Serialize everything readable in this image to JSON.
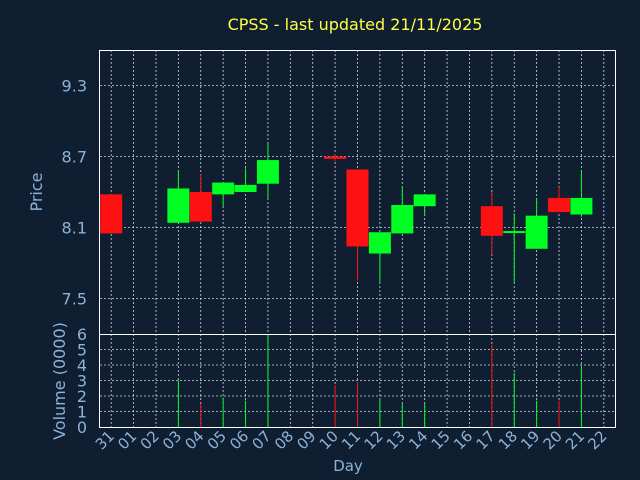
{
  "chart_data": [
    {
      "type": "candlestick",
      "title": "CPSS - last updated 21/11/2025",
      "ylabel": "Price",
      "ylim": [
        7.2,
        9.6
      ],
      "yticks": [
        "9.3",
        "8.7",
        "8.1",
        "7.5"
      ],
      "ytick_values": [
        9.3,
        8.7,
        8.1,
        7.5
      ],
      "grid": true,
      "x": [
        "31",
        "01",
        "02",
        "03",
        "04",
        "05",
        "06",
        "07",
        "08",
        "09",
        "10",
        "11",
        "12",
        "13",
        "14",
        "15",
        "16",
        "17",
        "18",
        "19",
        "20",
        "21",
        "22"
      ],
      "candles": [
        {
          "day": "31",
          "open": 8.38,
          "close": 8.05,
          "high": 8.38,
          "low": 8.05
        },
        {
          "day": "03",
          "open": 8.14,
          "close": 8.43,
          "high": 8.58,
          "low": 8.14
        },
        {
          "day": "04",
          "open": 8.4,
          "close": 8.15,
          "high": 8.55,
          "low": 8.15
        },
        {
          "day": "05",
          "open": 8.38,
          "close": 8.48,
          "high": 8.48,
          "low": 8.28
        },
        {
          "day": "06",
          "open": 8.4,
          "close": 8.46,
          "high": 8.6,
          "low": 8.4
        },
        {
          "day": "07",
          "open": 8.47,
          "close": 8.67,
          "high": 8.81,
          "low": 8.35
        },
        {
          "day": "10",
          "open": 8.7,
          "close": 8.68,
          "high": 8.72,
          "low": 8.66
        },
        {
          "day": "11",
          "open": 8.59,
          "close": 7.94,
          "high": 8.59,
          "low": 7.65
        },
        {
          "day": "12",
          "open": 7.88,
          "close": 8.06,
          "high": 8.06,
          "low": 7.64
        },
        {
          "day": "13",
          "open": 8.05,
          "close": 8.29,
          "high": 8.45,
          "low": 8.05
        },
        {
          "day": "14",
          "open": 8.28,
          "close": 8.38,
          "high": 8.38,
          "low": 8.2
        },
        {
          "day": "17",
          "open": 8.28,
          "close": 8.03,
          "high": 8.4,
          "low": 7.87
        },
        {
          "day": "18",
          "open": 8.06,
          "close": 8.07,
          "high": 8.22,
          "low": 7.63
        },
        {
          "day": "19",
          "open": 7.92,
          "close": 8.2,
          "high": 8.35,
          "low": 7.92
        },
        {
          "day": "20",
          "open": 8.35,
          "close": 8.23,
          "high": 8.44,
          "low": 8.23
        },
        {
          "day": "21",
          "open": 8.21,
          "close": 8.35,
          "high": 8.58,
          "low": 8.19
        }
      ]
    },
    {
      "type": "bar",
      "ylabel": "Volume (0000)",
      "xlabel": "Day",
      "ylim": [
        0,
        6
      ],
      "yticks": [
        "6",
        "5",
        "4",
        "3",
        "2",
        "1",
        "0"
      ],
      "ytick_values": [
        6,
        5,
        4,
        3,
        2,
        1,
        0
      ],
      "grid": true,
      "categories": [
        "31",
        "01",
        "02",
        "03",
        "04",
        "05",
        "06",
        "07",
        "08",
        "09",
        "10",
        "11",
        "12",
        "13",
        "14",
        "15",
        "16",
        "17",
        "18",
        "19",
        "20",
        "21",
        "22"
      ],
      "bars": [
        {
          "day": "03",
          "value": 3.0,
          "direction": "up"
        },
        {
          "day": "04",
          "value": 1.5,
          "direction": "down"
        },
        {
          "day": "05",
          "value": 1.9,
          "direction": "up"
        },
        {
          "day": "06",
          "value": 1.7,
          "direction": "up"
        },
        {
          "day": "07",
          "value": 5.9,
          "direction": "up"
        },
        {
          "day": "10",
          "value": 2.7,
          "direction": "down"
        },
        {
          "day": "11",
          "value": 2.9,
          "direction": "down"
        },
        {
          "day": "12",
          "value": 1.8,
          "direction": "up"
        },
        {
          "day": "13",
          "value": 1.5,
          "direction": "up"
        },
        {
          "day": "14",
          "value": 1.5,
          "direction": "up"
        },
        {
          "day": "17",
          "value": 5.3,
          "direction": "down"
        },
        {
          "day": "18",
          "value": 3.5,
          "direction": "up"
        },
        {
          "day": "19",
          "value": 1.7,
          "direction": "up"
        },
        {
          "day": "20",
          "value": 1.7,
          "direction": "down"
        },
        {
          "day": "21",
          "value": 4.0,
          "direction": "up"
        }
      ]
    }
  ],
  "colors": {
    "background": "#0f1e30",
    "title": "#ffff44",
    "axis_text": "#8db3d9",
    "frame": "#ffffff",
    "grid": "#d0d8e0",
    "up": "#00ff22",
    "down": "#ff1111"
  }
}
